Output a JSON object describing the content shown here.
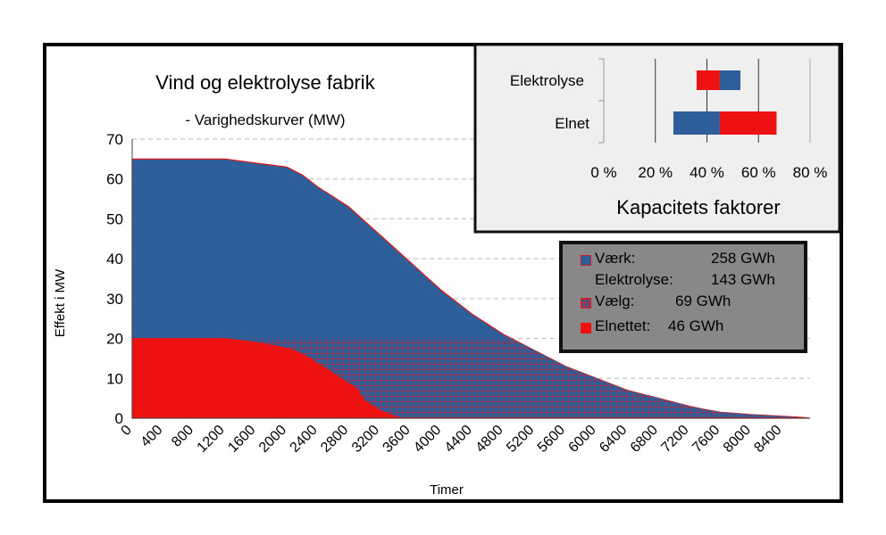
{
  "chart_data": [
    {
      "type": "area",
      "title": "Vind og elektrolyse fabrik",
      "subtitle": "- Varighedskurver (MW)",
      "xlabel": "Timer",
      "ylabel": "Effekt i MW",
      "xlim": [
        0,
        8760
      ],
      "ylim": [
        0,
        70
      ],
      "yticks": [
        0,
        10,
        20,
        30,
        40,
        50,
        60,
        70
      ],
      "xticks": [
        0,
        400,
        800,
        1200,
        1600,
        2000,
        2400,
        2800,
        3200,
        3600,
        4000,
        4400,
        4800,
        5200,
        5600,
        6000,
        6400,
        6800,
        7200,
        7600,
        8000,
        8400
      ],
      "grid": "horizontal dashed",
      "series": [
        {
          "name": "Værk",
          "color": "#2e5f9a",
          "x": [
            0,
            400,
            800,
            1200,
            1400,
            1600,
            1800,
            2000,
            2200,
            2400,
            2600,
            2800,
            3000,
            3200,
            3400,
            3600,
            3800,
            4000,
            4200,
            4400,
            4600,
            4800,
            5000,
            5200,
            5400,
            5600,
            5800,
            6000,
            6200,
            6400,
            6600,
            6800,
            7000,
            7200,
            7400,
            7600,
            7800,
            8000,
            8200,
            8400,
            8600,
            8760
          ],
          "y": [
            65,
            65,
            65,
            65,
            64.5,
            64,
            63.5,
            63,
            61,
            58,
            55.5,
            53,
            49.5,
            46,
            42.5,
            39,
            35.5,
            32,
            29,
            26,
            23.5,
            21,
            19,
            17,
            15,
            13,
            11.5,
            10,
            8.5,
            7,
            6,
            5,
            4,
            3,
            2.2,
            1.5,
            1.2,
            0.9,
            0.7,
            0.5,
            0.3,
            0
          ]
        },
        {
          "name": "Elnettet",
          "color": "#ee1111",
          "x": [
            0,
            800,
            1200,
            1600,
            1900,
            2100,
            2300,
            2500,
            2700,
            2900,
            3000,
            3200,
            3400,
            3500
          ],
          "y": [
            20,
            20,
            20,
            19,
            18,
            17,
            15,
            12.5,
            10,
            7.5,
            4.5,
            2,
            0.5,
            0
          ]
        },
        {
          "name": "Vælg",
          "pattern": "red grid on blue",
          "y_cap": 20
        }
      ],
      "legend": {
        "placement": "right",
        "entries": [
          {
            "label": "Værk:",
            "value": "258 GWh",
            "swatch": "blue"
          },
          {
            "label": "Elektrolyse:",
            "value": "143 GWh",
            "swatch": "none"
          },
          {
            "label": "Vælg:",
            "value": "69 GWh",
            "swatch": "pattern"
          },
          {
            "label": "Elnettet:",
            "value": "46 GWh",
            "swatch": "red"
          }
        ]
      }
    },
    {
      "type": "bar",
      "orientation": "horizontal",
      "stacked": "floating",
      "title": "Kapacitets faktorer",
      "categories": [
        "Elektrolyse",
        "Elnet"
      ],
      "xlim": [
        0,
        80
      ],
      "xticks": [
        "0 %",
        "20 %",
        "40 %",
        "60 %",
        "80 %"
      ],
      "series": [
        {
          "name": "",
          "color": "#ee1111",
          "ranges": [
            [
              36,
              45
            ],
            [
              45,
              67
            ]
          ]
        },
        {
          "name": "",
          "color": "#2e5f9a",
          "ranges": [
            [
              45,
              53
            ],
            [
              27,
              45
            ]
          ]
        }
      ]
    }
  ]
}
